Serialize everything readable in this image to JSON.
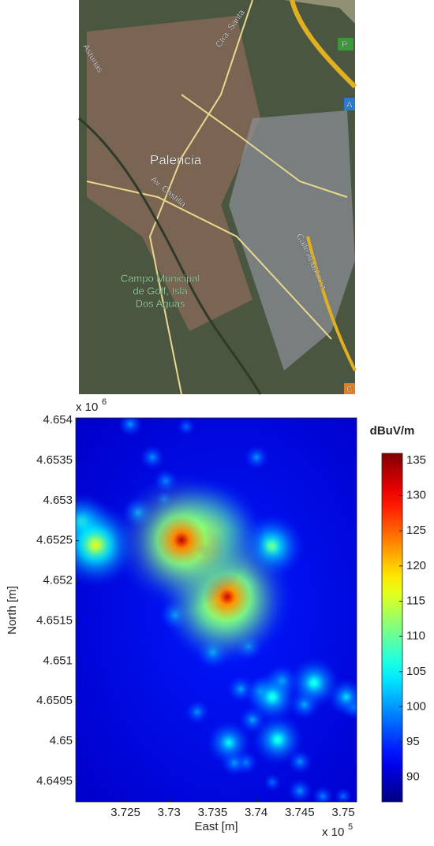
{
  "map": {
    "labels": [
      "Asturias",
      "Ctra. Santa",
      "Palencia",
      "Av. Castilla",
      "Calle Andalucía",
      "Campo Municipal",
      "de Golf, Isla",
      "Dos Aguas",
      "P",
      "A",
      "C"
    ]
  },
  "chart_data": {
    "type": "heatmap",
    "x_label": "East [m]",
    "y_label": "North [m]",
    "x_multiplier": "x 10",
    "x_exponent": "5",
    "y_multiplier": "x 10",
    "y_exponent": "6",
    "xlim": [
      371929,
      375154
    ],
    "ylim": [
      4649245,
      4654030
    ],
    "xticks": [
      {
        "value": 372500,
        "label": "3.725"
      },
      {
        "value": 373000,
        "label": "3.73"
      },
      {
        "value": 373500,
        "label": "3.735"
      },
      {
        "value": 374000,
        "label": "3.74"
      },
      {
        "value": 374500,
        "label": "3.745"
      },
      {
        "value": 375000,
        "label": "3.75"
      }
    ],
    "yticks": [
      {
        "value": 4649500,
        "label": "4.6495"
      },
      {
        "value": 4650000,
        "label": "4.65"
      },
      {
        "value": 4650500,
        "label": "4.6505"
      },
      {
        "value": 4651000,
        "label": "4.651"
      },
      {
        "value": 4651500,
        "label": "4.6515"
      },
      {
        "value": 4652000,
        "label": "4.652"
      },
      {
        "value": 4652500,
        "label": "4.6525"
      },
      {
        "value": 4653000,
        "label": "4.653"
      },
      {
        "value": 4653500,
        "label": "4.6535"
      },
      {
        "value": 4654000,
        "label": "4.654"
      }
    ],
    "colorbar_label": "dBuV/m",
    "colormap": "jet",
    "clim": [
      86.5,
      136
    ],
    "colorbar_ticks": [
      90,
      95,
      100,
      105,
      110,
      115,
      120,
      125,
      130,
      135
    ],
    "x": [
      373143,
      373388,
      373451,
      373668,
      373614,
      372156,
      372002,
      374176,
      374185,
      374248,
      374665,
      373686,
      373505,
      373071,
      375034,
      374502,
      374764,
      373750,
      374004,
      372554,
      372808,
      372645,
      374293,
      374556,
      373958,
      374049,
      373324,
      373823,
      373895,
      373913,
      374502,
      375118,
      373877,
      372962,
      374185,
      373197,
      375000,
      372944
    ],
    "y": [
      4652507,
      4652389,
      4652585,
      4651799,
      4651691,
      4652448,
      4652733,
      4652428,
      4650551,
      4650020,
      4650728,
      4649982,
      4651111,
      4651573,
      4650551,
      4649382,
      4649313,
      4649736,
      4653538,
      4653951,
      4653538,
      4652850,
      4650747,
      4650463,
      4650267,
      4650620,
      4650365,
      4650650,
      4651966,
      4651180,
      4649746,
      4650424,
      4649736,
      4653244,
      4649490,
      4653921,
      4649313,
      4653017
    ],
    "values": [
      133,
      130,
      125,
      132,
      128,
      118,
      110,
      112,
      108,
      108,
      108,
      106,
      103,
      102,
      104,
      100,
      99,
      101,
      100,
      100,
      100,
      102,
      103,
      102,
      101,
      102,
      100,
      101,
      101,
      101,
      100,
      100,
      100,
      100,
      98,
      98,
      98,
      98
    ]
  }
}
